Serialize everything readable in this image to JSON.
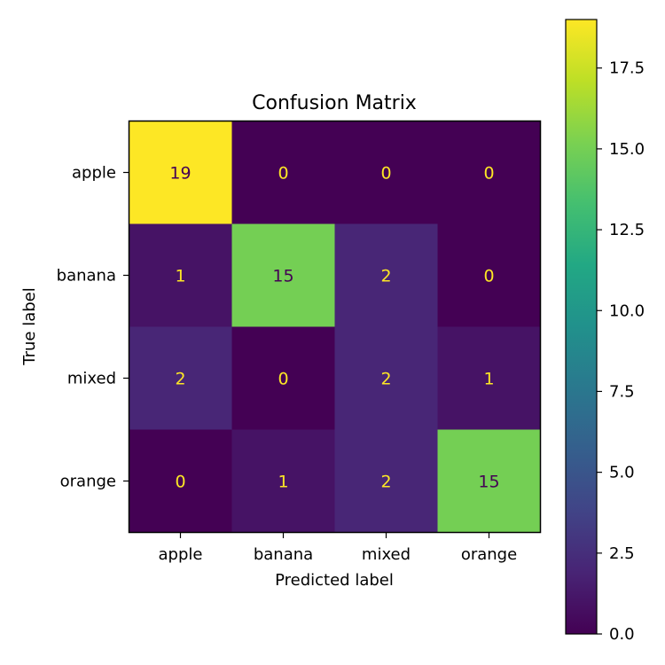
{
  "chart_data": {
    "type": "heatmap",
    "title": "Confusion Matrix",
    "xlabel": "Predicted label",
    "ylabel": "True label",
    "x_categories": [
      "apple",
      "banana",
      "mixed",
      "orange"
    ],
    "y_categories": [
      "apple",
      "banana",
      "mixed",
      "orange"
    ],
    "values": [
      [
        19,
        0,
        0,
        0
      ],
      [
        1,
        15,
        2,
        0
      ],
      [
        2,
        0,
        2,
        1
      ],
      [
        0,
        1,
        2,
        15
      ]
    ],
    "colormap": "viridis",
    "colorbar_range": [
      0,
      19
    ],
    "colorbar_ticks": [
      "0.0",
      "2.5",
      "5.0",
      "7.5",
      "10.0",
      "12.5",
      "15.0",
      "17.5"
    ],
    "text_color_light": "#fde725",
    "text_color_dark": "#440154"
  }
}
